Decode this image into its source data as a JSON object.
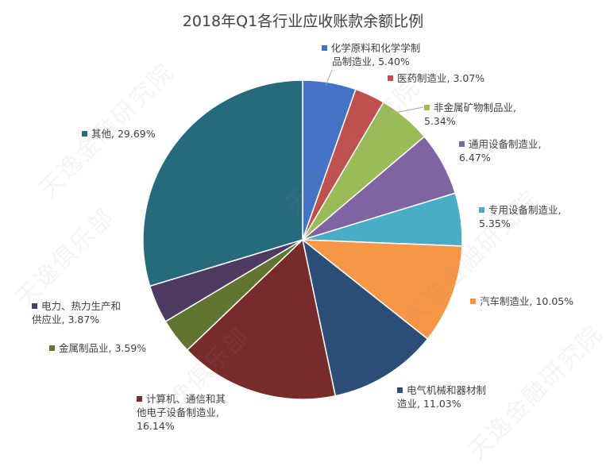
{
  "chart_data": {
    "type": "pie",
    "title": "2018年Q1各行业应收账款余额比例",
    "unit": "%",
    "slices": [
      {
        "name": "化学原料和化学制品制造业",
        "value": 5.4,
        "label_lines": [
          "化学原料和化学学制",
          "品制造业, 5.40%"
        ],
        "color": "#4472c4"
      },
      {
        "name": "医药制造业",
        "value": 3.07,
        "label_lines": [
          "医药制造业, 3.07%"
        ],
        "color": "#c0504d"
      },
      {
        "name": "非金属矿物制品业",
        "value": 5.34,
        "label_lines": [
          "非金属矿物制品业,",
          "5.34%"
        ],
        "color": "#9bbb59"
      },
      {
        "name": "通用设备制造业",
        "value": 6.47,
        "label_lines": [
          "通用设备制造业,",
          "6.47%"
        ],
        "color": "#8064a2"
      },
      {
        "name": "专用设备制造业",
        "value": 5.35,
        "label_lines": [
          "专用设备制造业,",
          "5.35%"
        ],
        "color": "#4bacc6"
      },
      {
        "name": "汽车制造业",
        "value": 10.05,
        "label_lines": [
          "汽车制造业, 10.05%"
        ],
        "color": "#f79646"
      },
      {
        "name": "电气机械和器材制造业",
        "value": 11.03,
        "label_lines": [
          "电气机械和器材制",
          "造业, 11.03%"
        ],
        "color": "#2c4d75"
      },
      {
        "name": "计算机、通信和其他电子设备制造业",
        "value": 16.14,
        "label_lines": [
          "计算机、通信和其",
          "他电子设备制造业,",
          "16.14%"
        ],
        "color": "#772c2a"
      },
      {
        "name": "金属制品业",
        "value": 3.59,
        "label_lines": [
          "金属制品业, 3.59%"
        ],
        "color": "#5f7530"
      },
      {
        "name": "电力、热力生产和供应业",
        "value": 3.87,
        "label_lines": [
          "电力、热力生产和",
          "供应业, 3.87%"
        ],
        "color": "#4d3b62"
      },
      {
        "name": "其他",
        "value": 29.69,
        "label_lines": [
          "其他, 29.69%"
        ],
        "color": "#276a7c"
      }
    ]
  },
  "watermark": {
    "text_a": "天逸金融研究院",
    "text_b": "天逸俱乐部"
  }
}
